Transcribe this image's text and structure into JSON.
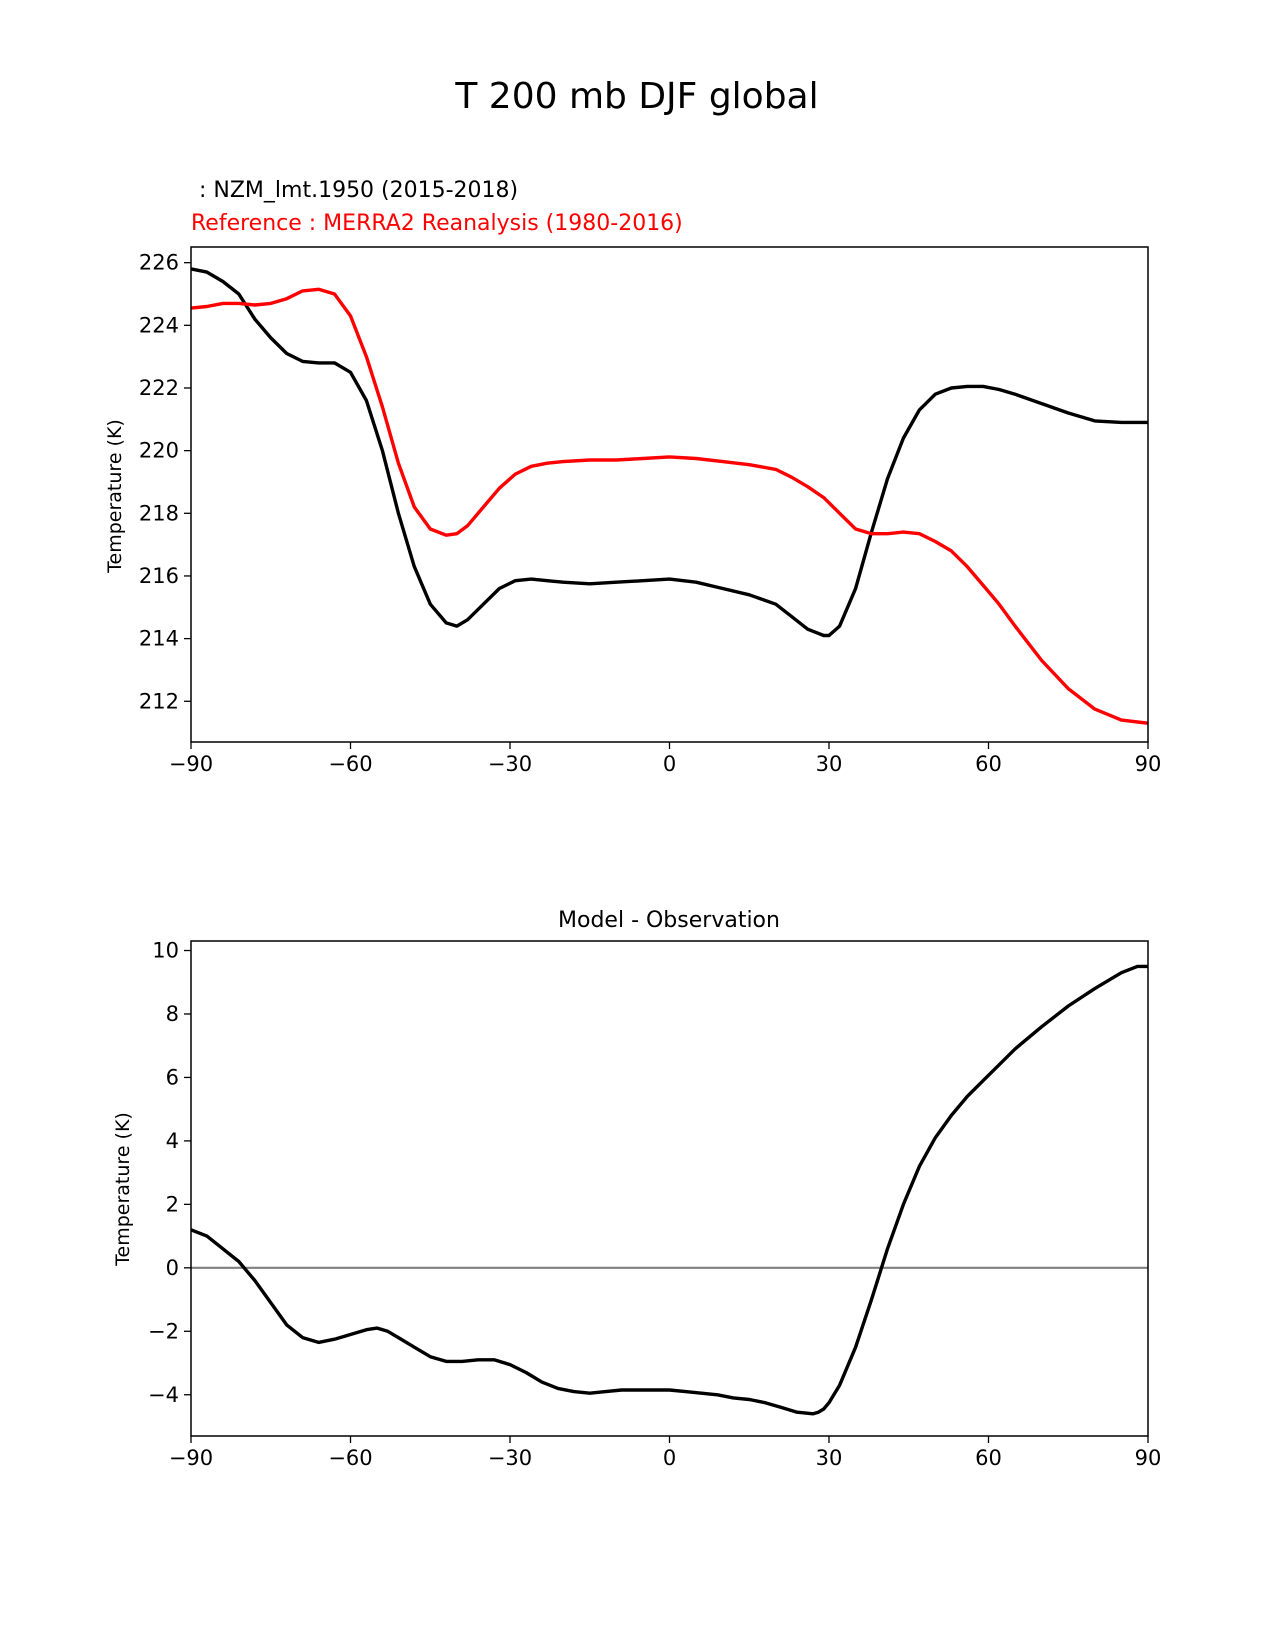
{
  "figure": {
    "title": "T 200 mb DJF global"
  },
  "colors": {
    "model": "#000000",
    "reference": "#ff0000",
    "zero_line": "#808080"
  },
  "chart_data": [
    {
      "type": "line",
      "subtitle_model": " : NZM_lmt.1950 (2015-2018)",
      "subtitle_reference": "Reference : MERRA2 Reanalysis (1980-2016)",
      "xlabel": "",
      "ylabel": "Temperature (K)",
      "xlim": [
        -90,
        90
      ],
      "ylim": [
        210.7,
        226.5
      ],
      "xticks": [
        -90,
        -60,
        -30,
        0,
        30,
        60,
        90
      ],
      "xtick_labels": [
        "−90",
        "−60",
        "−30",
        "0",
        "30",
        "60",
        "90"
      ],
      "yticks": [
        212,
        214,
        216,
        218,
        220,
        222,
        224,
        226
      ],
      "ytick_labels": [
        "212",
        "214",
        "216",
        "218",
        "220",
        "222",
        "224",
        "226"
      ],
      "series": [
        {
          "name": "NZM_lmt.1950 (2015-2018)",
          "color": "#000000",
          "x": [
            -90,
            -87,
            -84,
            -81,
            -78,
            -75,
            -72,
            -69,
            -66,
            -63,
            -60,
            -57,
            -54,
            -51,
            -48,
            -45,
            -42,
            -40,
            -38,
            -35,
            -32,
            -29,
            -26,
            -23,
            -20,
            -15,
            -10,
            -5,
            0,
            5,
            10,
            15,
            20,
            23,
            26,
            29,
            30,
            32,
            35,
            38,
            41,
            44,
            47,
            50,
            53,
            56,
            59,
            62,
            65,
            70,
            75,
            80,
            85,
            90
          ],
          "y": [
            225.8,
            225.7,
            225.4,
            225.0,
            224.2,
            223.6,
            223.1,
            222.85,
            222.8,
            222.8,
            222.5,
            221.6,
            220.0,
            218.0,
            216.3,
            215.1,
            214.5,
            214.4,
            214.6,
            215.1,
            215.6,
            215.85,
            215.9,
            215.85,
            215.8,
            215.75,
            215.8,
            215.85,
            215.9,
            215.8,
            215.6,
            215.4,
            215.1,
            214.7,
            214.3,
            214.1,
            214.1,
            214.4,
            215.6,
            217.4,
            219.1,
            220.4,
            221.3,
            221.8,
            222.0,
            222.05,
            222.05,
            221.95,
            221.8,
            221.5,
            221.2,
            220.95,
            220.9,
            220.9
          ]
        },
        {
          "name": "MERRA2 Reanalysis (1980-2016)",
          "color": "#ff0000",
          "x": [
            -90,
            -87,
            -84,
            -81,
            -78,
            -75,
            -72,
            -69,
            -66,
            -63,
            -60,
            -57,
            -54,
            -51,
            -48,
            -45,
            -42,
            -40,
            -38,
            -35,
            -32,
            -29,
            -26,
            -23,
            -20,
            -15,
            -10,
            -5,
            0,
            5,
            10,
            15,
            20,
            23,
            26,
            29,
            32,
            35,
            38,
            41,
            44,
            47,
            50,
            53,
            56,
            59,
            62,
            65,
            70,
            75,
            80,
            85,
            90
          ],
          "y": [
            224.55,
            224.6,
            224.7,
            224.7,
            224.65,
            224.7,
            224.85,
            225.1,
            225.15,
            225.0,
            224.3,
            223.0,
            221.4,
            219.6,
            218.2,
            217.5,
            217.3,
            217.35,
            217.6,
            218.2,
            218.8,
            219.25,
            219.5,
            219.6,
            219.65,
            219.7,
            219.7,
            219.75,
            219.8,
            219.75,
            219.65,
            219.55,
            219.4,
            219.15,
            218.85,
            218.5,
            218.0,
            217.5,
            217.35,
            217.35,
            217.4,
            217.35,
            217.1,
            216.8,
            216.3,
            215.7,
            215.1,
            214.4,
            213.3,
            212.4,
            211.75,
            211.4,
            211.3
          ]
        }
      ]
    },
    {
      "type": "line",
      "title": "Model - Observation",
      "xlabel": "",
      "ylabel": "Temperature (K)",
      "xlim": [
        -90,
        90
      ],
      "ylim": [
        -5.3,
        10.3
      ],
      "xticks": [
        -90,
        -60,
        -30,
        0,
        30,
        60,
        90
      ],
      "xtick_labels": [
        "−90",
        "−60",
        "−30",
        "0",
        "30",
        "60",
        "90"
      ],
      "yticks": [
        -4,
        -2,
        0,
        2,
        4,
        6,
        8,
        10
      ],
      "ytick_labels": [
        "−4",
        "−2",
        "0",
        "2",
        "4",
        "6",
        "8",
        "10"
      ],
      "reference_line": 0,
      "series": [
        {
          "name": "Model - Observation",
          "color": "#000000",
          "x": [
            -90,
            -87,
            -84,
            -81,
            -78,
            -75,
            -72,
            -69,
            -66,
            -63,
            -60,
            -57,
            -55,
            -53,
            -51,
            -48,
            -45,
            -42,
            -39,
            -36,
            -33,
            -30,
            -27,
            -24,
            -21,
            -18,
            -15,
            -12,
            -9,
            -6,
            -3,
            0,
            3,
            6,
            9,
            12,
            15,
            18,
            21,
            24,
            27,
            28,
            29,
            30,
            32,
            35,
            38,
            41,
            44,
            47,
            50,
            53,
            56,
            59,
            62,
            65,
            70,
            75,
            80,
            85,
            88,
            90
          ],
          "y": [
            1.2,
            1.0,
            0.6,
            0.2,
            -0.4,
            -1.1,
            -1.8,
            -2.2,
            -2.35,
            -2.25,
            -2.1,
            -1.95,
            -1.9,
            -2.0,
            -2.2,
            -2.5,
            -2.8,
            -2.95,
            -2.95,
            -2.9,
            -2.9,
            -3.05,
            -3.3,
            -3.6,
            -3.8,
            -3.9,
            -3.95,
            -3.9,
            -3.85,
            -3.85,
            -3.85,
            -3.85,
            -3.9,
            -3.95,
            -4.0,
            -4.1,
            -4.15,
            -4.25,
            -4.4,
            -4.55,
            -4.6,
            -4.55,
            -4.45,
            -4.25,
            -3.7,
            -2.5,
            -1.0,
            0.6,
            2.0,
            3.2,
            4.1,
            4.8,
            5.4,
            5.9,
            6.4,
            6.9,
            7.6,
            8.25,
            8.8,
            9.3,
            9.5,
            9.5
          ]
        }
      ]
    }
  ]
}
